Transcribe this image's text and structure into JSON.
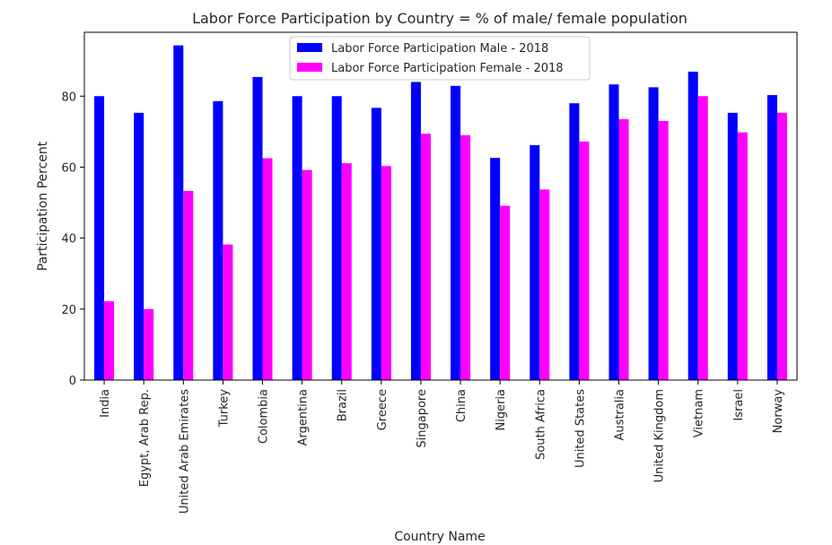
{
  "chart_data": {
    "type": "bar",
    "title": "Labor Force Participation by Country = % of male/ female population",
    "xlabel": "Country Name",
    "ylabel": "Participation Percent",
    "ylim": [
      0,
      98
    ],
    "yticks": [
      0,
      20,
      40,
      60,
      80
    ],
    "grid": false,
    "legend_position": "top-center",
    "categories": [
      "India",
      "Egypt, Arab Rep.",
      "United Arab Emirates",
      "Turkey",
      "Colombia",
      "Argentina",
      "Brazil",
      "Greece",
      "Singapore",
      "China",
      "Nigeria",
      "South Africa",
      "United States",
      "Australia",
      "United Kingdom",
      "Vietnam",
      "Israel",
      "Norway"
    ],
    "series": [
      {
        "name": "Labor Force Participation Male - 2018",
        "color": "#0000ff",
        "values": [
          80.0,
          75.3,
          94.3,
          78.6,
          85.4,
          80.0,
          80.0,
          76.7,
          84.0,
          82.9,
          62.6,
          66.2,
          78.0,
          83.3,
          82.5,
          86.9,
          75.3,
          80.3
        ]
      },
      {
        "name": "Labor Force Participation Female - 2018",
        "color": "#ff00ff",
        "values": [
          22.2,
          20.0,
          53.3,
          38.2,
          62.5,
          59.2,
          61.1,
          60.3,
          69.4,
          69.0,
          49.1,
          53.7,
          67.2,
          73.5,
          73.0,
          80.0,
          69.8,
          75.3
        ]
      }
    ]
  }
}
